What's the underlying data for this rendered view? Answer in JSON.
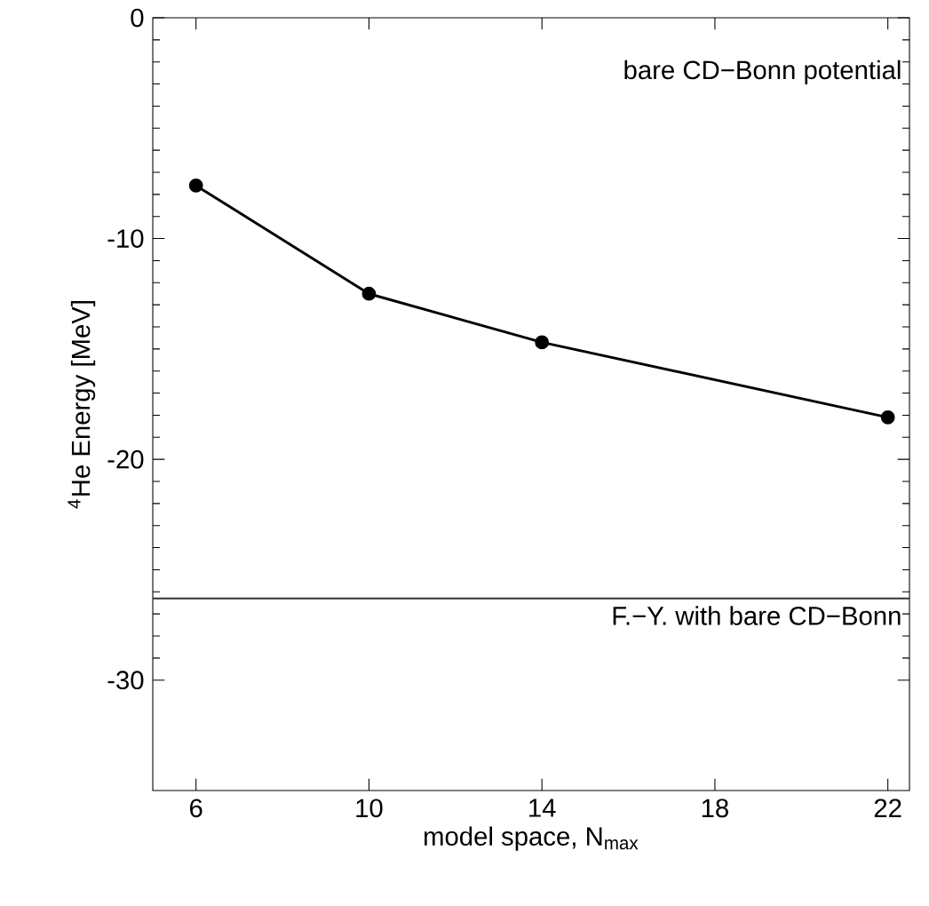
{
  "chart_data": {
    "type": "line",
    "xlabel": "model space, N$_{max}$",
    "ylabel": "$^{4}$He Energy  [MeV]",
    "x": [
      6,
      10,
      14,
      22
    ],
    "series": [
      {
        "color": "#000000",
        "values": [
          -7.6,
          -12.5,
          -14.7,
          -18.1
        ]
      }
    ],
    "xlim": [
      5,
      22.5
    ],
    "xticks": [
      6,
      10,
      14,
      18,
      22
    ],
    "ylim": [
      -35,
      0
    ],
    "yticks": [
      -30,
      -20,
      -10,
      0
    ],
    "ref_lines": [
      {
        "axis": "y",
        "value": -26.3,
        "label": "F.−Y. with bare CD−Bonn",
        "color": "#333333"
      }
    ],
    "annotations": [
      "bare CD−Bonn potential"
    ],
    "marker": "circle",
    "line_style": "solid",
    "grid": false
  }
}
